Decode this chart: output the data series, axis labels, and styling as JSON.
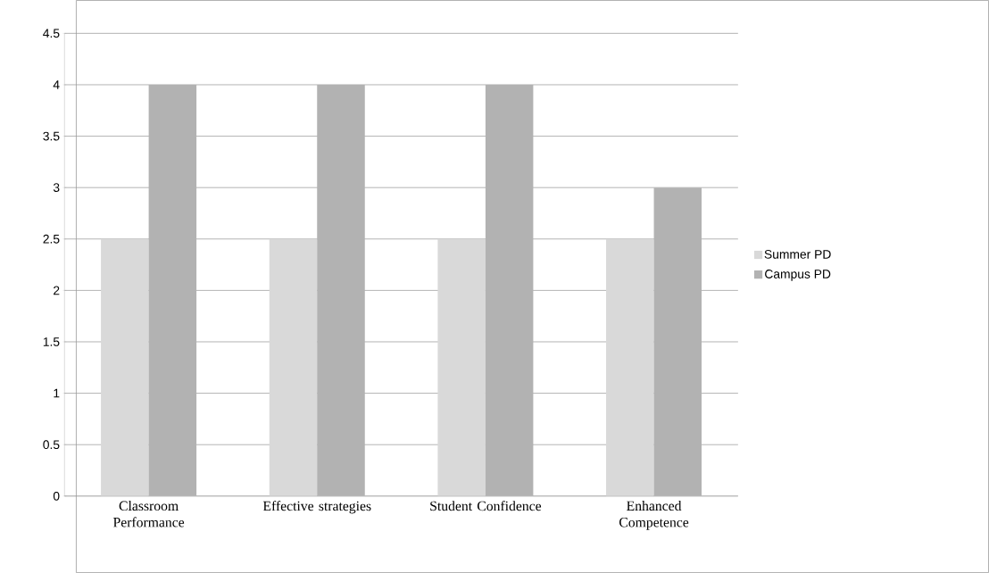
{
  "chart_data": {
    "type": "bar",
    "categories": [
      "Classroom Performance",
      "Effective strategies",
      "Student Confidence",
      "Enhanced Competence"
    ],
    "series": [
      {
        "name": "Summer PD",
        "color": "#d9d9d9",
        "values": [
          2.5,
          2.5,
          2.5,
          2.5
        ]
      },
      {
        "name": "Campus PD",
        "color": "#b2b2b2",
        "values": [
          4,
          4,
          4,
          3
        ]
      }
    ],
    "ylim": [
      0,
      4.5
    ],
    "yticks": [
      0,
      0.5,
      1,
      1.5,
      2,
      2.5,
      3,
      3.5,
      4,
      4.5
    ],
    "grid": "y",
    "legend": "right"
  }
}
